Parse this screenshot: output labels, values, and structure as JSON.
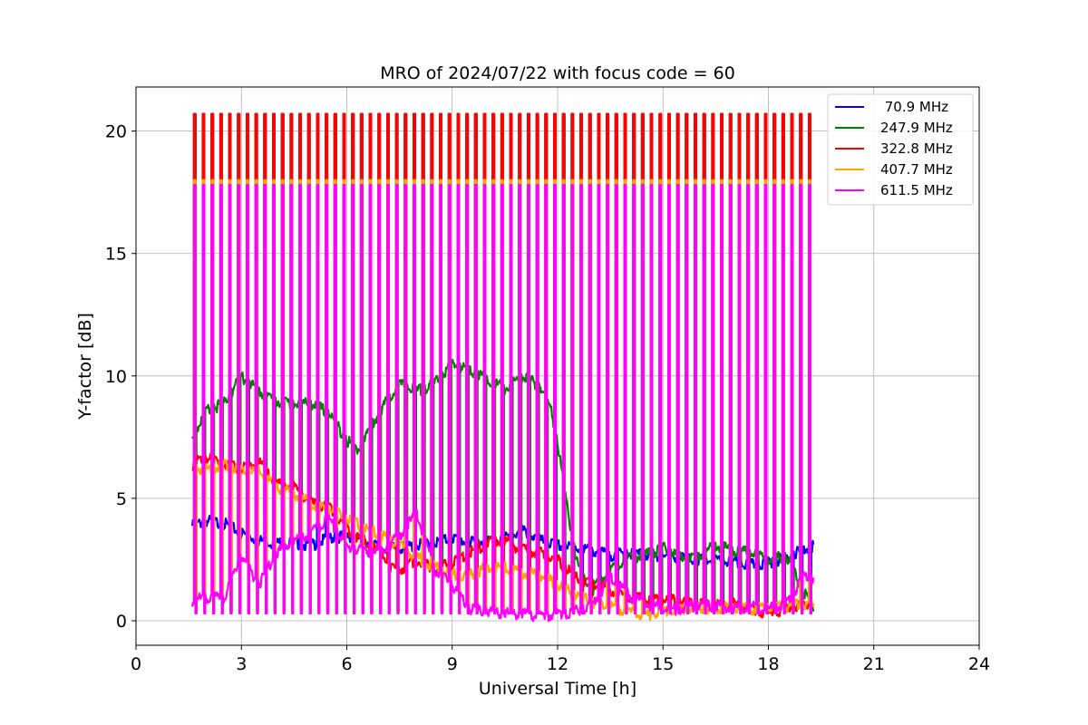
{
  "chart_data": {
    "type": "line",
    "title": "MRO of 2024/07/22 with focus code = 60",
    "xlabel": "Universal Time [h]",
    "ylabel": "Y-factor [dB]",
    "xlim": [
      0,
      24
    ],
    "ylim": [
      -1,
      21.8
    ],
    "xticks": [
      0,
      3,
      6,
      9,
      12,
      15,
      18,
      21,
      24
    ],
    "yticks": [
      0,
      5,
      10,
      15,
      20
    ],
    "grid": true,
    "legend_position": "top-right",
    "cal_pulses": {
      "start_h": 1.65,
      "end_h": 19.3,
      "period_h": 0.25,
      "width_h": 0.045
    },
    "series": [
      {
        "name": " 70.9 MHz",
        "color": "#0000ff",
        "x": [
          1.6,
          2.0,
          2.5,
          3.0,
          3.5,
          4.0,
          4.5,
          5.0,
          5.5,
          6.0,
          6.5,
          7.0,
          7.5,
          8.0,
          8.5,
          9.0,
          9.5,
          10.0,
          10.5,
          11.0,
          11.5,
          12.0,
          12.5,
          13.0,
          13.5,
          14.0,
          14.5,
          15.0,
          15.5,
          16.0,
          16.5,
          17.0,
          17.5,
          18.0,
          18.5,
          19.0,
          19.3
        ],
        "values": [
          4.0,
          4.2,
          4.1,
          3.7,
          3.4,
          3.3,
          3.3,
          3.2,
          3.5,
          3.6,
          3.4,
          3.1,
          3.1,
          3.2,
          3.3,
          3.5,
          3.3,
          3.4,
          3.5,
          3.8,
          3.4,
          3.2,
          3.1,
          3.0,
          2.8,
          2.9,
          2.8,
          2.8,
          2.7,
          2.6,
          2.6,
          2.5,
          2.4,
          2.5,
          2.7,
          3.0,
          3.2
        ],
        "pulse_top": 20.7,
        "pulse_bottom": 0.3
      },
      {
        "name": "247.9 MHz",
        "color": "#008000",
        "x": [
          1.6,
          2.0,
          2.5,
          3.0,
          3.5,
          4.0,
          4.5,
          5.0,
          5.5,
          6.0,
          6.3,
          6.5,
          7.0,
          7.5,
          8.0,
          8.5,
          9.0,
          9.5,
          10.0,
          10.5,
          11.0,
          11.5,
          11.8,
          12.0,
          12.3,
          12.6,
          13.0,
          13.5,
          14.0,
          14.5,
          15.0,
          15.5,
          16.0,
          16.5,
          17.0,
          17.5,
          18.0,
          18.5,
          19.0,
          19.3
        ],
        "values": [
          7.6,
          8.7,
          9.0,
          10.1,
          9.5,
          9.1,
          9.0,
          9.0,
          8.6,
          7.5,
          7.1,
          7.6,
          8.8,
          9.8,
          9.5,
          9.8,
          10.6,
          10.4,
          10.0,
          9.6,
          10.1,
          9.7,
          8.8,
          7.4,
          4.5,
          2.2,
          1.4,
          2.2,
          2.7,
          2.8,
          3.1,
          2.7,
          2.8,
          3.2,
          3.0,
          2.9,
          2.6,
          2.8,
          1.3,
          0.5
        ],
        "pulse_top": 20.7,
        "pulse_bottom": 0.4
      },
      {
        "name": "322.8 MHz",
        "color": "#ff0000",
        "x": [
          1.6,
          2.0,
          2.5,
          3.0,
          3.5,
          4.0,
          4.5,
          5.0,
          5.5,
          6.0,
          6.5,
          7.0,
          7.3,
          7.6,
          8.0,
          8.5,
          9.0,
          9.5,
          10.0,
          10.5,
          11.0,
          11.5,
          12.0,
          12.5,
          13.0,
          13.5,
          14.0,
          14.5,
          15.0,
          15.5,
          16.0,
          16.5,
          17.0,
          17.5,
          18.0,
          18.5,
          19.0,
          19.3
        ],
        "values": [
          6.5,
          6.8,
          6.6,
          6.3,
          6.6,
          5.7,
          5.6,
          4.9,
          4.8,
          3.9,
          3.3,
          2.9,
          2.2,
          2.3,
          2.6,
          2.2,
          2.5,
          2.9,
          3.3,
          3.4,
          3.0,
          2.9,
          2.6,
          1.9,
          1.6,
          1.4,
          1.1,
          1.0,
          1.0,
          0.9,
          0.8,
          0.8,
          0.8,
          0.6,
          0.4,
          0.6,
          0.8,
          0.9
        ],
        "pulse_top": 20.7,
        "pulse_bottom": 0.4
      },
      {
        "name": "407.7 MHz",
        "color": "#ffa500",
        "x": [
          1.6,
          2.0,
          2.5,
          3.0,
          3.5,
          4.0,
          4.5,
          5.0,
          5.5,
          6.0,
          6.5,
          7.0,
          7.5,
          8.0,
          8.5,
          9.0,
          9.5,
          10.0,
          10.5,
          11.0,
          11.5,
          12.0,
          12.5,
          13.0,
          13.5,
          14.0,
          14.5,
          15.0,
          15.5,
          16.0,
          16.5,
          17.0,
          17.5,
          18.0,
          18.5,
          19.0,
          19.3
        ],
        "values": [
          6.4,
          6.3,
          6.5,
          6.3,
          6.2,
          5.6,
          5.3,
          4.9,
          4.7,
          4.3,
          3.9,
          3.6,
          3.2,
          2.7,
          2.3,
          2.0,
          2.0,
          2.3,
          2.3,
          2.1,
          2.0,
          1.6,
          1.2,
          0.9,
          0.7,
          0.5,
          0.3,
          0.5,
          0.6,
          0.7,
          0.6,
          0.7,
          0.6,
          0.7,
          0.7,
          0.8,
          0.7
        ],
        "pulse_top": 18.0,
        "pulse_bottom": 0.3
      },
      {
        "name": "611.5 MHz",
        "color": "#ff00ff",
        "x": [
          1.6,
          2.0,
          2.5,
          3.0,
          3.5,
          4.0,
          4.5,
          5.0,
          5.5,
          6.0,
          6.5,
          7.0,
          7.5,
          8.0,
          8.5,
          9.0,
          9.5,
          10.0,
          10.5,
          11.0,
          11.5,
          12.0,
          12.5,
          13.0,
          13.5,
          14.0,
          14.5,
          15.0,
          15.5,
          16.0,
          16.5,
          17.0,
          17.5,
          18.0,
          18.5,
          19.0,
          19.3
        ],
        "values": [
          0.9,
          1.1,
          1.0,
          2.8,
          1.6,
          2.9,
          3.4,
          3.7,
          4.3,
          3.1,
          3.0,
          2.9,
          3.6,
          4.5,
          2.2,
          1.6,
          0.6,
          0.5,
          0.4,
          0.4,
          0.3,
          0.4,
          0.5,
          0.8,
          1.9,
          1.2,
          0.8,
          0.6,
          0.6,
          0.8,
          0.7,
          0.6,
          0.7,
          0.6,
          0.8,
          1.9,
          1.9
        ],
        "pulse_top": 17.8,
        "pulse_bottom": 0.3
      }
    ]
  }
}
